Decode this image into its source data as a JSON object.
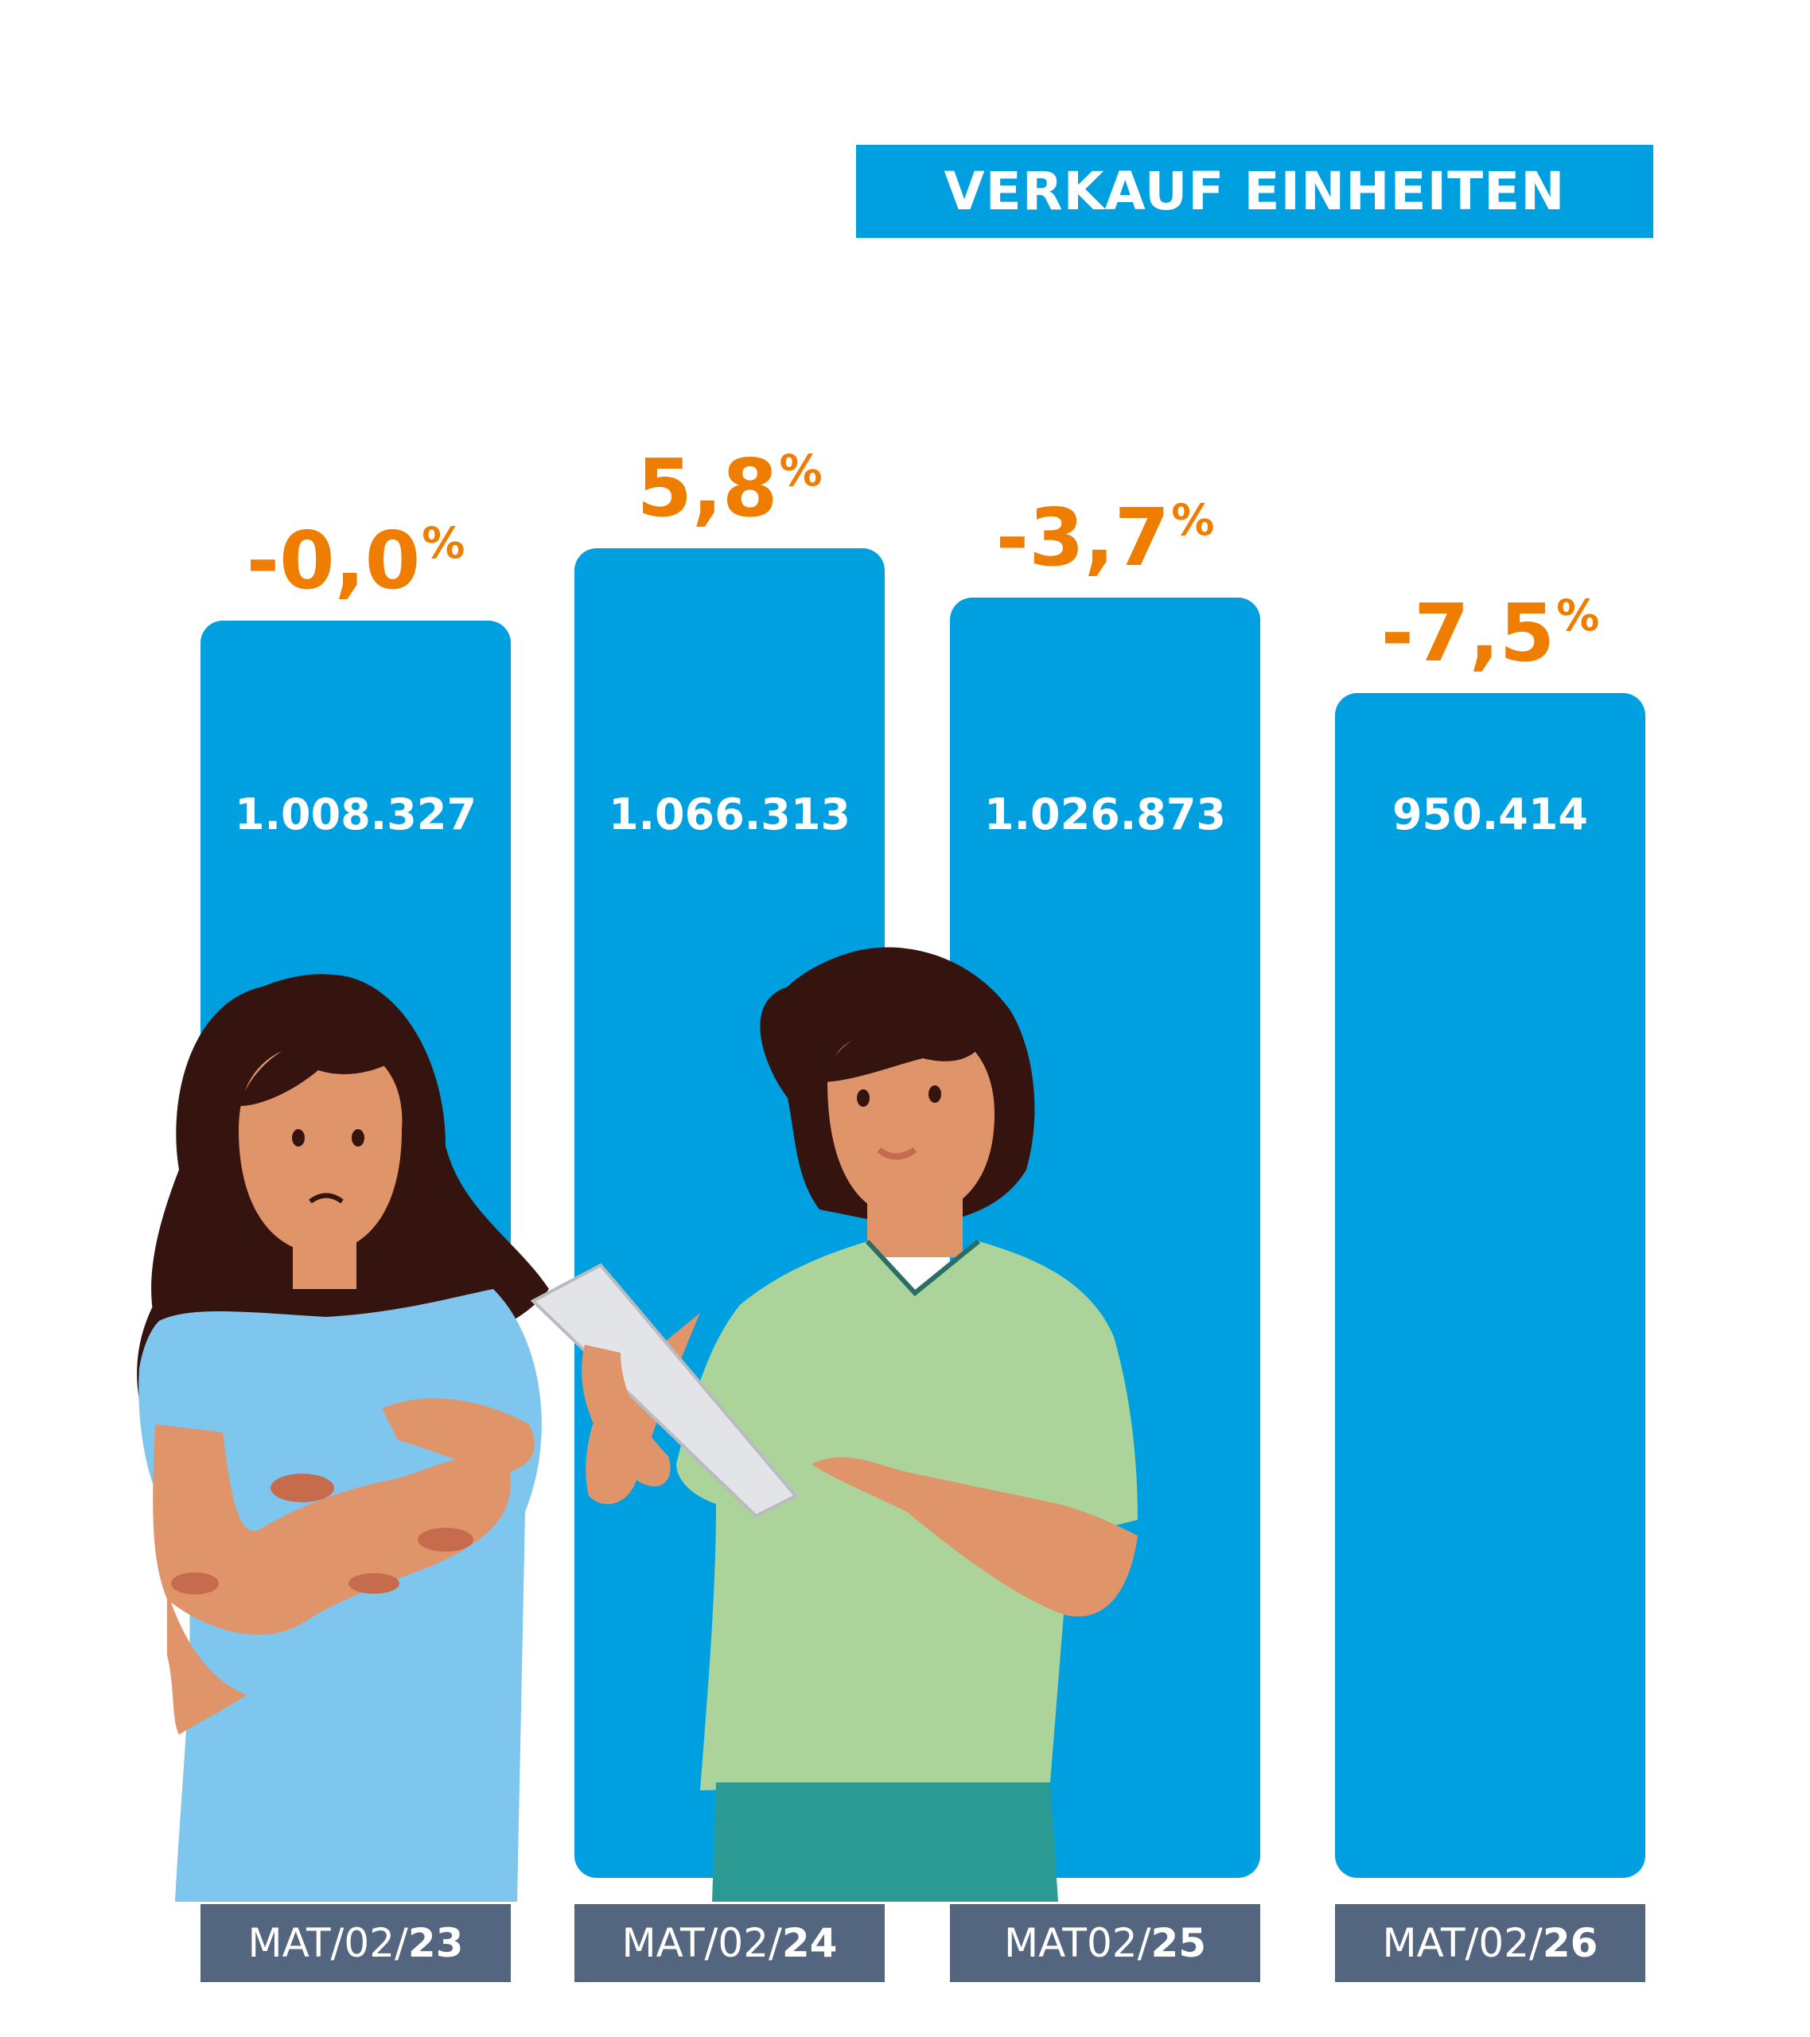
{
  "title": "VERKAUF EINHEITEN",
  "colors": {
    "bar": "#00a0e0",
    "percent": "#ef7d00",
    "category_box": "#546580",
    "title_box": "#00a0e0"
  },
  "chart_data": {
    "type": "bar",
    "title": "VERKAUF EINHEITEN",
    "xlabel": "",
    "ylabel": "",
    "grid": false,
    "legend": "none",
    "categories": [
      {
        "prefix": "MAT/02/",
        "suffix": "23"
      },
      {
        "prefix": "MAT/02/",
        "suffix": "24"
      },
      {
        "prefix": "MAT02/",
        "suffix": "25"
      },
      {
        "prefix": "MAT/02/",
        "suffix": "26"
      }
    ],
    "values": [
      1008327,
      1066313,
      1026873,
      950414
    ],
    "value_labels": [
      "1.008.327",
      "1.066.313",
      "1.026.873",
      "950.414"
    ],
    "changes": [
      {
        "num": "-0,0",
        "sign": "%"
      },
      {
        "num": "5,8",
        "sign": "%"
      },
      {
        "num": "-3,7",
        "sign": "%"
      },
      {
        "num": "-7,5",
        "sign": "%"
      }
    ],
    "ylim": [
      0,
      1080000
    ]
  },
  "illustration": [
    "woman-with-skin-condition",
    "healthcare-worker-with-tablet"
  ]
}
